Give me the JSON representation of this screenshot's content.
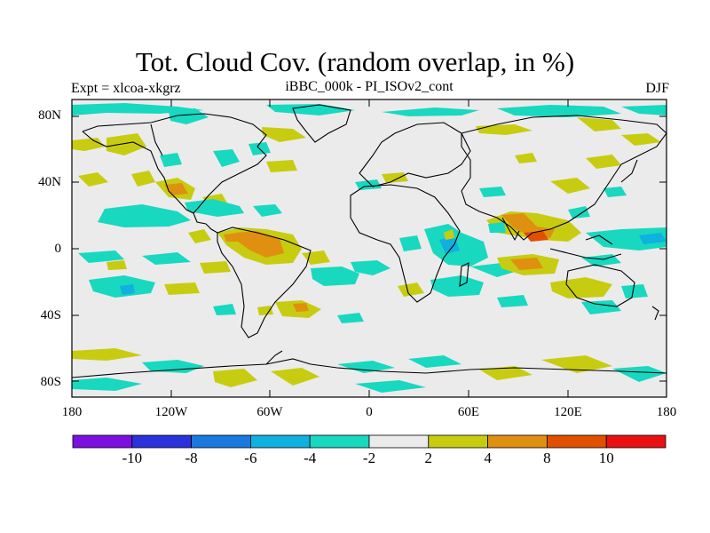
{
  "title": "Tot. Cloud Cov. (random overlap, in %)",
  "experiment": "Expt = xlcoa-xkgrz",
  "run": "iBBC_000k - PI_ISOv2_cont",
  "season": "DJF",
  "lat_labels": [
    "80N",
    "40N",
    "0",
    "40S",
    "80S"
  ],
  "lon_labels": [
    "180",
    "120W",
    "60W",
    "0",
    "60E",
    "120E",
    "180"
  ],
  "colorbar": {
    "colors": [
      "#7b10e0",
      "#2a32dc",
      "#1a78e0",
      "#10b0e0",
      "#18d8c0",
      "#ebebeb",
      "#c8cc10",
      "#e09010",
      "#e05000",
      "#e81010"
    ],
    "labels": [
      "-10",
      "-8",
      "-6",
      "-4",
      "-2",
      "2",
      "4",
      "8",
      "10"
    ]
  },
  "colors": {
    "land_ocean_background": "#ebebeb",
    "positive_small": "#c8cc10",
    "positive_mid": "#e09010",
    "negative_small": "#18d8c0",
    "negative_mid": "#10b0e0",
    "coastline": "#000000"
  }
}
